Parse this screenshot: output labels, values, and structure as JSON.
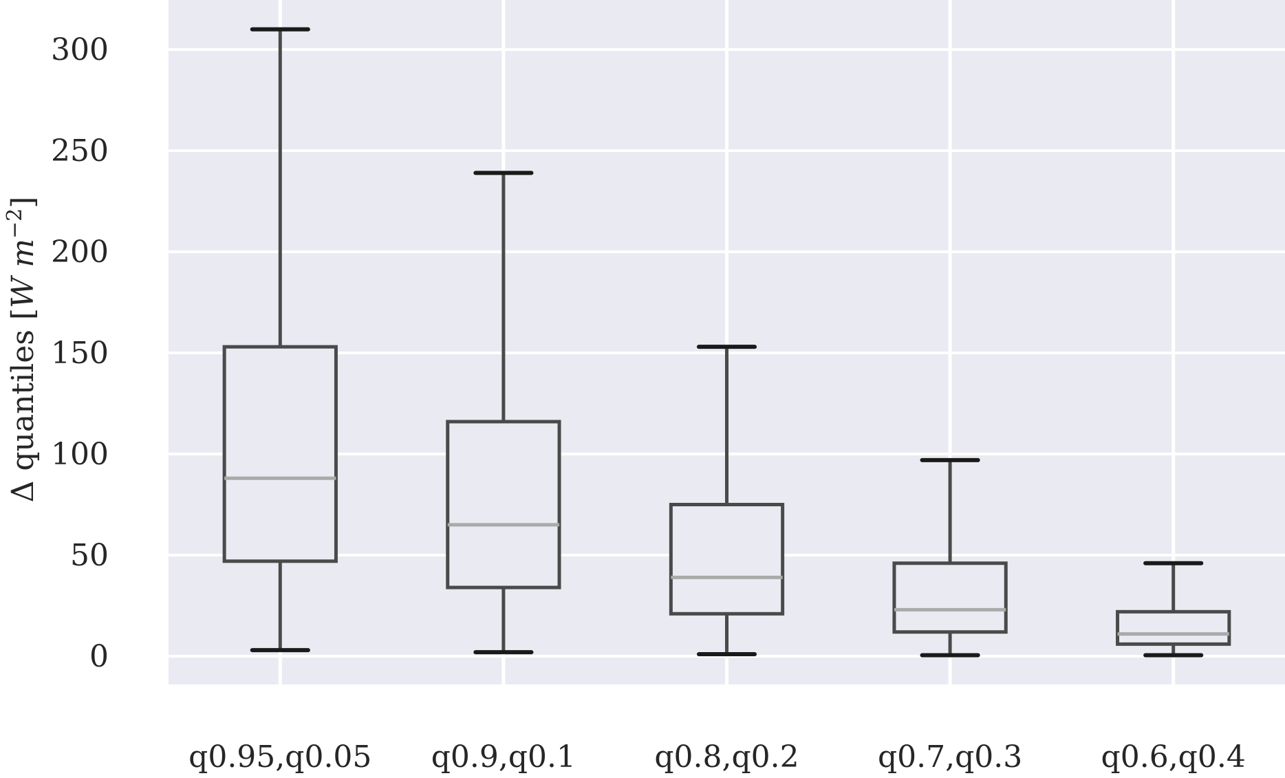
{
  "chart_data": {
    "type": "box",
    "title": "",
    "xlabel": "",
    "ylabel": {
      "prefix": "Δ quantiles [",
      "unit_w": "W",
      "unit_m": "m",
      "exponent": "−2",
      "suffix": "]"
    },
    "ylim": [
      -14,
      325
    ],
    "yticks": [
      0,
      50,
      100,
      150,
      200,
      250,
      300
    ],
    "grid": true,
    "categories": [
      "q0.95,q0.05",
      "q0.9,q0.1",
      "q0.8,q0.2",
      "q0.7,q0.3",
      "q0.6,q0.4"
    ],
    "boxes": [
      {
        "whisker_low": 3,
        "q1": 47,
        "median": 88,
        "q3": 153,
        "whisker_high": 310
      },
      {
        "whisker_low": 2,
        "q1": 34,
        "median": 65,
        "q3": 116,
        "whisker_high": 239
      },
      {
        "whisker_low": 1,
        "q1": 21,
        "median": 39,
        "q3": 75,
        "whisker_high": 153
      },
      {
        "whisker_low": 0.5,
        "q1": 12,
        "median": 23,
        "q3": 46,
        "whisker_high": 97
      },
      {
        "whisker_low": 0.5,
        "q1": 6,
        "median": 11,
        "q3": 22,
        "whisker_high": 46
      }
    ],
    "colors": {
      "background": "#eaeaf2",
      "grid": "#ffffff",
      "box": "#4a4a4a",
      "median": "#aaaaaa",
      "cap": "#1a1a1a"
    }
  }
}
